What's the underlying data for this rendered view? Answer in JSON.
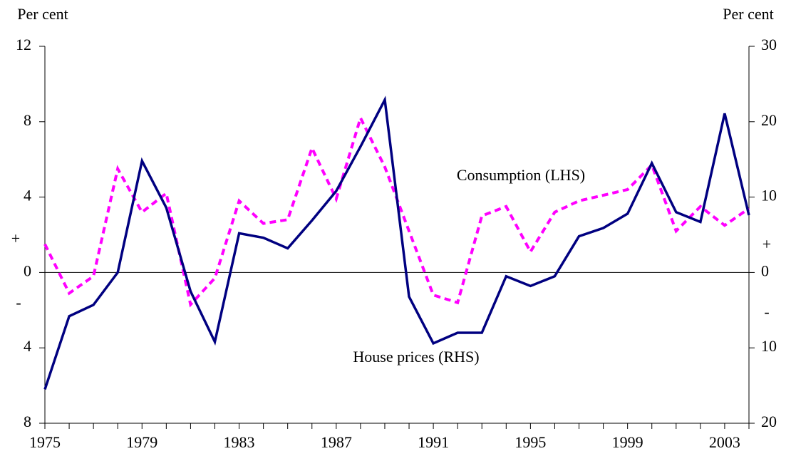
{
  "chart_data": {
    "type": "line",
    "y_label": "Per cent",
    "y2_label": "Per cent",
    "sign_labels": [
      "+",
      "-"
    ],
    "annotations": [
      "Consumption (LHS)",
      "House prices (RHS)"
    ],
    "x": [
      1975,
      1976,
      1977,
      1978,
      1979,
      1980,
      1981,
      1982,
      1983,
      1984,
      1985,
      1986,
      1987,
      1988,
      1989,
      1990,
      1991,
      1992,
      1993,
      1994,
      1995,
      1996,
      1997,
      1998,
      1999,
      2000,
      2001,
      2002,
      2003,
      2004
    ],
    "xlim": [
      1975,
      2004
    ],
    "xticks": [
      1975,
      1979,
      1983,
      1987,
      1991,
      1995,
      1999,
      2003
    ],
    "ylim": [
      -8,
      12
    ],
    "yticks": [
      {
        "value": -8,
        "label": "8"
      },
      {
        "value": -4,
        "label": "4"
      },
      0,
      4,
      8,
      12
    ],
    "y2lim": [
      -20,
      30
    ],
    "y2ticks": [
      {
        "value": -20,
        "label": "20"
      },
      {
        "value": -10,
        "label": "10"
      },
      0,
      10,
      20,
      30
    ],
    "series": [
      {
        "name": "Consumption (LHS)",
        "color": "#ff00ff",
        "dashed": true,
        "axis": "y",
        "values": [
          1.5,
          -1.1,
          -0.2,
          5.5,
          3.2,
          4.2,
          -1.7,
          -0.3,
          3.8,
          2.6,
          2.8,
          6.6,
          3.9,
          8.2,
          5.6,
          2.2,
          -1.2,
          -1.6,
          3.0,
          3.5,
          1.1,
          3.2,
          3.8,
          4.1,
          4.4,
          5.7,
          2.2,
          3.5,
          2.5,
          3.4
        ]
      },
      {
        "name": "House prices (RHS)",
        "color": "#000080",
        "dashed": false,
        "axis": "y2",
        "values": [
          -15.5,
          -5.8,
          -4.3,
          0,
          14.8,
          8.6,
          -2.5,
          -9.2,
          5.2,
          4.6,
          3.2,
          6.9,
          10.8,
          16.7,
          22.9,
          -3.2,
          -9.4,
          -8.0,
          -8.0,
          -0.5,
          -1.8,
          -0.5,
          4.8,
          5.9,
          7.8,
          14.5,
          8.0,
          6.7,
          21.1,
          7.6
        ]
      }
    ]
  }
}
